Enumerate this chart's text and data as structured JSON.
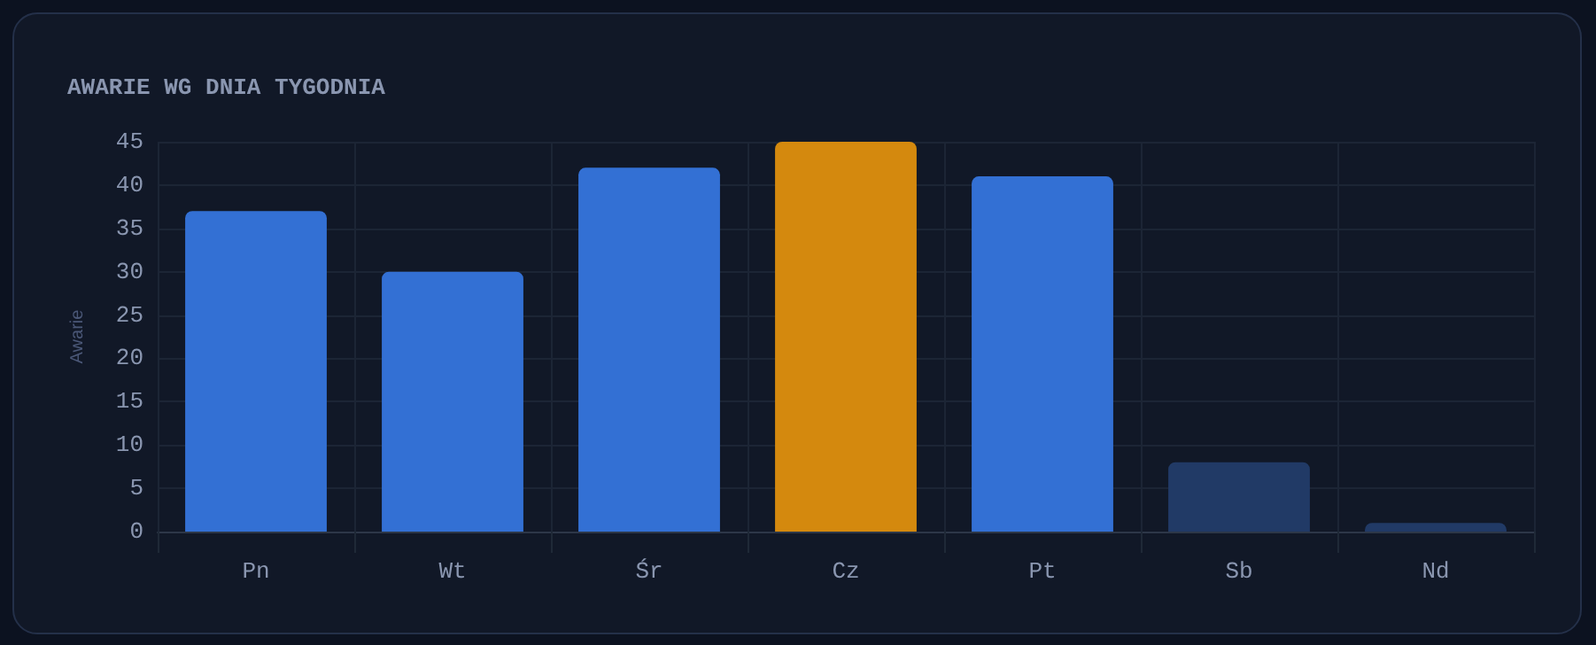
{
  "chart_data": {
    "type": "bar",
    "title": "AWARIE WG DNIA TYGODNIA",
    "ylabel": "Awarie",
    "categories": [
      "Pn",
      "Wt",
      "Śr",
      "Cz",
      "Pt",
      "Sb",
      "Nd"
    ],
    "values": [
      37,
      30,
      42,
      45,
      41,
      8,
      1
    ],
    "colors": [
      "#3370d4",
      "#3370d4",
      "#3370d4",
      "#d4890e",
      "#3370d4",
      "#213a66",
      "#213a66"
    ],
    "ylim": [
      0,
      45
    ],
    "yticks": [
      0,
      5,
      10,
      15,
      20,
      25,
      30,
      35,
      40,
      45
    ],
    "grid": true
  }
}
